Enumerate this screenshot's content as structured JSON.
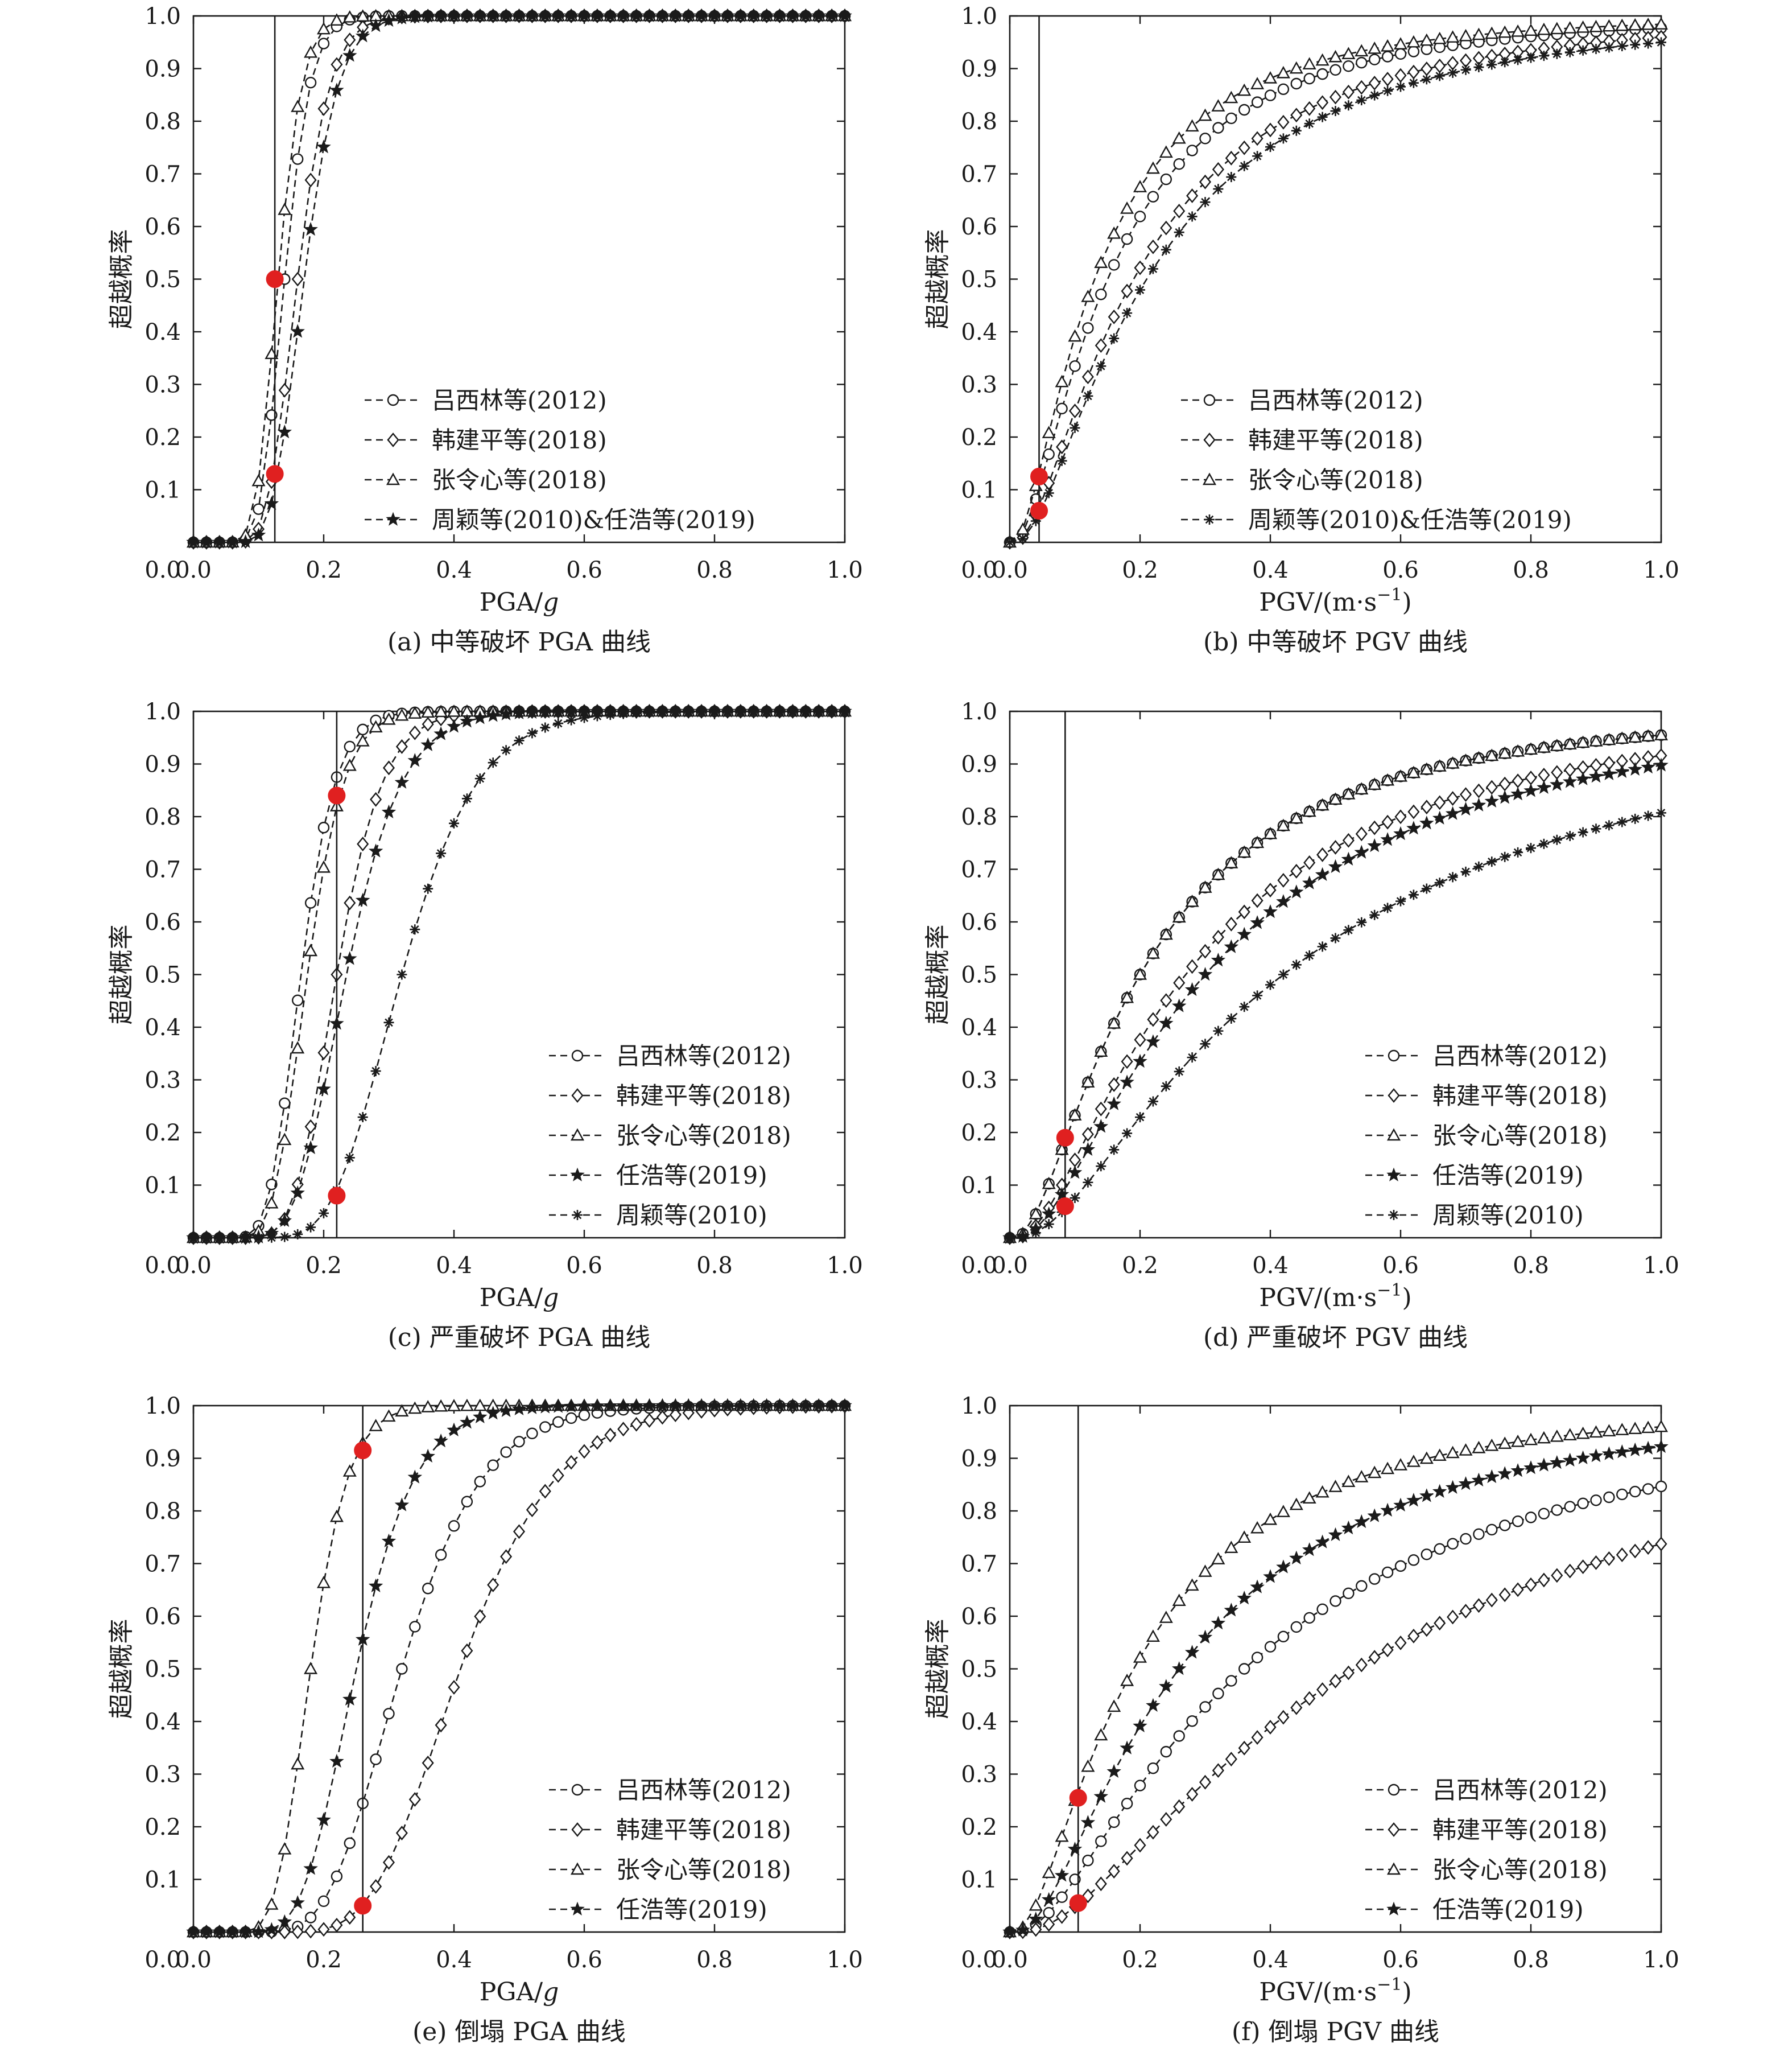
{
  "ylabel": "超越概率",
  "colors": {
    "axis": "#1a1a1a",
    "series": "#1a1a1a",
    "marker_highlight": "#e02020"
  },
  "chart_data": [
    {
      "id": "a",
      "type": "line",
      "caption": "(a) 中等破坏 PGA 曲线",
      "xlabel_main": "PGA/",
      "xlabel_unit": "g",
      "xlabel_unit_italic": true,
      "xlabel_sup": "",
      "xlim": [
        0,
        1
      ],
      "ylim": [
        0,
        1
      ],
      "grid": false,
      "legend_position": "bottom-right",
      "x_ticks": [
        "0.0",
        "0.2",
        "0.4",
        "0.6",
        "0.8",
        "1.0"
      ],
      "y_ticks": [
        "0.0",
        "0.1",
        "0.2",
        "0.3",
        "0.4",
        "0.5",
        "0.6",
        "0.7",
        "0.8",
        "0.9",
        "1.0"
      ],
      "vline_x": 0.125,
      "highlight_points": [
        {
          "x": 0.125,
          "y": 0.5
        },
        {
          "x": 0.125,
          "y": 0.13
        }
      ],
      "series": [
        {
          "name": "吕西林等(2012)",
          "marker": "circle",
          "median": 0.14,
          "beta": 0.22
        },
        {
          "name": "韩建平等(2018)",
          "marker": "diamond",
          "median": 0.16,
          "beta": 0.24
        },
        {
          "name": "张令心等(2018)",
          "marker": "triangle",
          "median": 0.13,
          "beta": 0.22
        },
        {
          "name": "周颖等(2010)&任浩等(2019)",
          "marker": "star",
          "median": 0.17,
          "beta": 0.24
        }
      ]
    },
    {
      "id": "b",
      "type": "line",
      "caption": "(b) 中等破坏 PGV 曲线",
      "xlabel_main": "PGV/(m·s",
      "xlabel_unit": "",
      "xlabel_unit_italic": false,
      "xlabel_sup": "−1",
      "xlabel_end": ")",
      "xlim": [
        0,
        1
      ],
      "ylim": [
        0,
        1
      ],
      "grid": false,
      "legend_position": "bottom-right",
      "x_ticks": [
        "0.0",
        "0.2",
        "0.4",
        "0.6",
        "0.8",
        "1.0"
      ],
      "y_ticks": [
        "0.0",
        "0.1",
        "0.2",
        "0.3",
        "0.4",
        "0.5",
        "0.6",
        "0.7",
        "0.8",
        "0.9",
        "1.0"
      ],
      "vline_x": 0.045,
      "highlight_points": [
        {
          "x": 0.045,
          "y": 0.125
        },
        {
          "x": 0.045,
          "y": 0.06
        }
      ],
      "series": [
        {
          "name": "吕西林等(2012)",
          "marker": "circle",
          "median": 0.15,
          "beta": 0.95
        },
        {
          "name": "韩建平等(2018)",
          "marker": "diamond",
          "median": 0.19,
          "beta": 0.95
        },
        {
          "name": "张令心等(2018)",
          "marker": "triangle",
          "median": 0.13,
          "beta": 0.95
        },
        {
          "name": "周颖等(2010)&任浩等(2019)",
          "marker": "asterisk",
          "median": 0.21,
          "beta": 0.95
        }
      ]
    },
    {
      "id": "c",
      "type": "line",
      "caption": "(c) 严重破坏 PGA 曲线",
      "xlabel_main": "PGA/",
      "xlabel_unit": "g",
      "xlabel_unit_italic": true,
      "xlabel_sup": "",
      "xlim": [
        0,
        1
      ],
      "ylim": [
        0,
        1
      ],
      "grid": false,
      "legend_position": "bottom-right",
      "x_ticks": [
        "0.0",
        "0.2",
        "0.4",
        "0.6",
        "0.8",
        "1.0"
      ],
      "y_ticks": [
        "0.0",
        "0.1",
        "0.2",
        "0.3",
        "0.4",
        "0.5",
        "0.6",
        "0.7",
        "0.8",
        "0.9",
        "1.0"
      ],
      "vline_x": 0.22,
      "highlight_points": [
        {
          "x": 0.22,
          "y": 0.84
        },
        {
          "x": 0.22,
          "y": 0.08
        }
      ],
      "series": [
        {
          "name": "吕西林等(2012)",
          "marker": "circle",
          "median": 0.165,
          "beta": 0.25
        },
        {
          "name": "韩建平等(2018)",
          "marker": "diamond",
          "median": 0.22,
          "beta": 0.25
        },
        {
          "name": "张令心等(2018)",
          "marker": "triangle",
          "median": 0.175,
          "beta": 0.25
        },
        {
          "name": "任浩等(2019)",
          "marker": "star",
          "median": 0.235,
          "beta": 0.28
        },
        {
          "name": "周颖等(2010)",
          "marker": "asterisk",
          "median": 0.32,
          "beta": 0.28
        }
      ]
    },
    {
      "id": "d",
      "type": "line",
      "caption": "(d) 严重破坏 PGV 曲线",
      "xlabel_main": "PGV/(m·s",
      "xlabel_unit": "",
      "xlabel_unit_italic": false,
      "xlabel_sup": "−1",
      "xlabel_end": ")",
      "xlim": [
        0,
        1
      ],
      "ylim": [
        0,
        1
      ],
      "grid": false,
      "legend_position": "bottom-right",
      "x_ticks": [
        "0.0",
        "0.2",
        "0.4",
        "0.6",
        "0.8",
        "1.0"
      ],
      "y_ticks": [
        "0.0",
        "0.1",
        "0.2",
        "0.3",
        "0.4",
        "0.5",
        "0.6",
        "0.7",
        "0.8",
        "0.9",
        "1.0"
      ],
      "vline_x": 0.085,
      "highlight_points": [
        {
          "x": 0.085,
          "y": 0.19
        },
        {
          "x": 0.085,
          "y": 0.06
        }
      ],
      "series": [
        {
          "name": "吕西林等(2012)",
          "marker": "circle",
          "median": 0.2,
          "beta": 0.95
        },
        {
          "name": "韩建平等(2018)",
          "marker": "diamond",
          "median": 0.27,
          "beta": 0.95
        },
        {
          "name": "张令心等(2018)",
          "marker": "triangle",
          "median": 0.2,
          "beta": 0.95
        },
        {
          "name": "任浩等(2019)",
          "marker": "star",
          "median": 0.3,
          "beta": 0.95
        },
        {
          "name": "周颖等(2010)",
          "marker": "asterisk",
          "median": 0.42,
          "beta": 1.0
        }
      ]
    },
    {
      "id": "e",
      "type": "line",
      "caption": "(e) 倒塌 PGA 曲线",
      "xlabel_main": "PGA/",
      "xlabel_unit": "g",
      "xlabel_unit_italic": true,
      "xlabel_sup": "",
      "xlim": [
        0,
        1
      ],
      "ylim": [
        0,
        1
      ],
      "grid": false,
      "legend_position": "bottom-right",
      "x_ticks": [
        "0.0",
        "0.2",
        "0.4",
        "0.6",
        "0.8",
        "1.0"
      ],
      "y_ticks": [
        "0.0",
        "0.1",
        "0.2",
        "0.3",
        "0.4",
        "0.5",
        "0.6",
        "0.7",
        "0.8",
        "0.9",
        "1.0"
      ],
      "vline_x": 0.26,
      "highlight_points": [
        {
          "x": 0.26,
          "y": 0.915
        },
        {
          "x": 0.26,
          "y": 0.05
        }
      ],
      "series": [
        {
          "name": "吕西林等(2012)",
          "marker": "circle",
          "median": 0.32,
          "beta": 0.3
        },
        {
          "name": "韩建平等(2018)",
          "marker": "diamond",
          "median": 0.41,
          "beta": 0.28
        },
        {
          "name": "张令心等(2018)",
          "marker": "triangle",
          "median": 0.18,
          "beta": 0.25
        },
        {
          "name": "任浩等(2019)",
          "marker": "star",
          "median": 0.25,
          "beta": 0.28
        }
      ]
    },
    {
      "id": "f",
      "type": "line",
      "caption": "(f) 倒塌 PGV 曲线",
      "xlabel_main": "PGV/(m·s",
      "xlabel_unit": "",
      "xlabel_unit_italic": false,
      "xlabel_sup": "−1",
      "xlabel_end": ")",
      "xlim": [
        0,
        1
      ],
      "ylim": [
        0,
        1
      ],
      "grid": false,
      "legend_position": "bottom-right",
      "x_ticks": [
        "0.0",
        "0.2",
        "0.4",
        "0.6",
        "0.8",
        "1.0"
      ],
      "y_ticks": [
        "0.0",
        "0.1",
        "0.2",
        "0.3",
        "0.4",
        "0.5",
        "0.6",
        "0.7",
        "0.8",
        "0.9",
        "1.0"
      ],
      "vline_x": 0.105,
      "highlight_points": [
        {
          "x": 0.105,
          "y": 0.255
        },
        {
          "x": 0.105,
          "y": 0.055
        }
      ],
      "series": [
        {
          "name": "吕西林等(2012)",
          "marker": "circle",
          "median": 0.36,
          "beta": 1.0
        },
        {
          "name": "韩建平等(2018)",
          "marker": "diamond",
          "median": 0.53,
          "beta": 1.0
        },
        {
          "name": "张令心等(2018)",
          "marker": "triangle",
          "median": 0.19,
          "beta": 0.95
        },
        {
          "name": "任浩等(2019)",
          "marker": "star",
          "median": 0.26,
          "beta": 0.95
        }
      ]
    }
  ]
}
